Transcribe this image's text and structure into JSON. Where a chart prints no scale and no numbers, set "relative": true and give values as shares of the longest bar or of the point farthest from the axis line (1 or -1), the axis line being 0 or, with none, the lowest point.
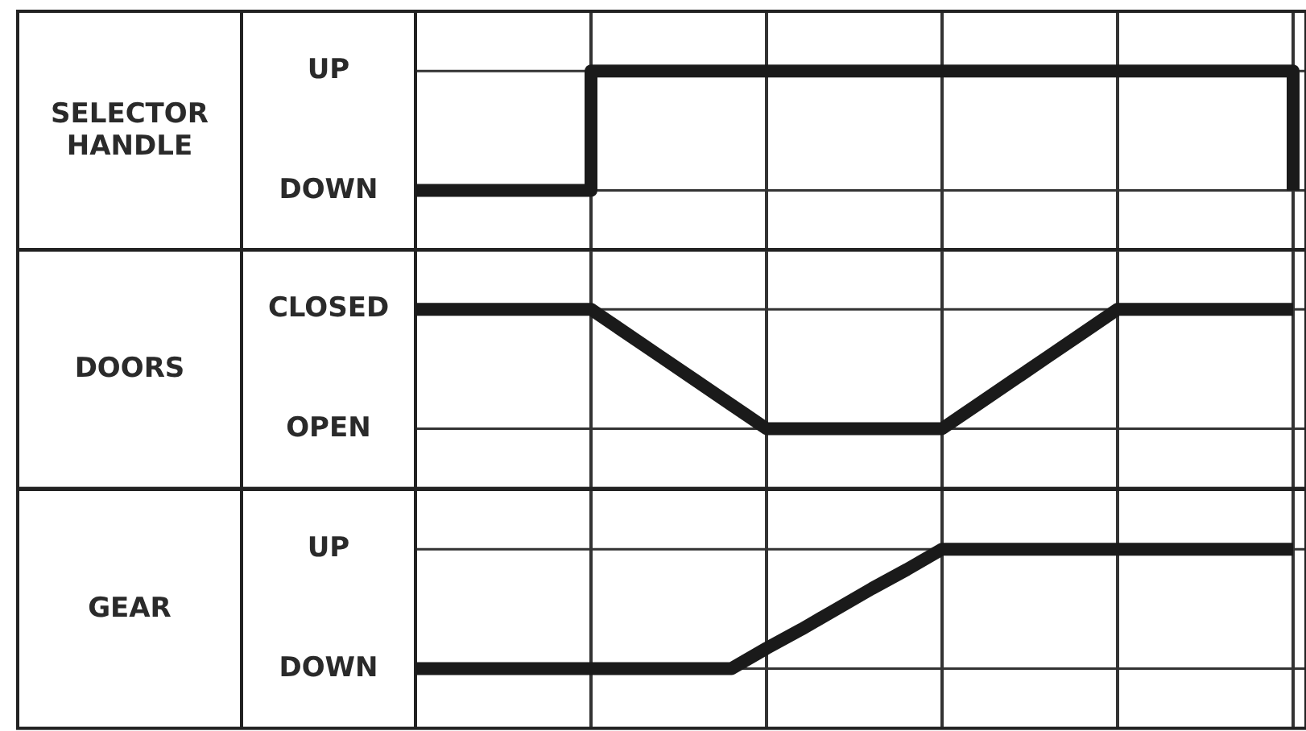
{
  "chart_data": [
    {
      "type": "step",
      "relative": true,
      "ylabel": "SELECTOR HANDLE",
      "categories": [
        null,
        null,
        null,
        null,
        null,
        null,
        null,
        null,
        null,
        null,
        null,
        null,
        null,
        null,
        null,
        null,
        null,
        null,
        null,
        null,
        null,
        null,
        null,
        null,
        null,
        null
      ],
      "y_categories": [
        "UP",
        "DOWN"
      ],
      "grid": true,
      "marker": "none",
      "line_style": "solid",
      "series": [
        {
          "color": "#1a1a1a",
          "values": [
            0,
            0,
            0,
            0,
            0,
            1,
            1,
            1,
            1,
            1,
            1,
            1,
            1,
            1,
            1,
            1,
            1,
            1,
            1,
            1,
            1,
            1,
            1,
            1,
            1,
            0
          ]
        }
      ]
    },
    {
      "type": "line",
      "relative": true,
      "ylabel": "DOORS",
      "categories": [
        null,
        null,
        null,
        null,
        null,
        null,
        null,
        null,
        null,
        null,
        null,
        null,
        null,
        null,
        null,
        null,
        null,
        null,
        null,
        null,
        null,
        null,
        null,
        null,
        null,
        null
      ],
      "y_categories": [
        "CLOSED",
        "OPEN"
      ],
      "grid": true,
      "marker": "none",
      "line_style": "solid",
      "series": [
        {
          "color": "#1a1a1a",
          "values": [
            1,
            1,
            1,
            1,
            1,
            1,
            0.8,
            0.6,
            0.4,
            0.2,
            0,
            0,
            0,
            0,
            0,
            0,
            0.2,
            0.4,
            0.6,
            0.8,
            1,
            1,
            1,
            1,
            1,
            1
          ]
        }
      ]
    },
    {
      "type": "line",
      "relative": true,
      "ylabel": "GEAR",
      "categories": [
        null,
        null,
        null,
        null,
        null,
        null,
        null,
        null,
        null,
        null,
        null,
        null,
        null,
        null,
        null,
        null,
        null,
        null,
        null,
        null,
        null,
        null,
        null,
        null,
        null,
        null
      ],
      "y_categories": [
        "UP",
        "DOWN"
      ],
      "grid": true,
      "marker": "none",
      "line_style": "solid",
      "series": [
        {
          "color": "#1a1a1a",
          "values": [
            0,
            0,
            0,
            0,
            0,
            0,
            0,
            0,
            0,
            0,
            0.17,
            0.33,
            0.5,
            0.67,
            0.83,
            1,
            1,
            1,
            1,
            1,
            1,
            1,
            1,
            1,
            1,
            1
          ]
        }
      ]
    }
  ]
}
